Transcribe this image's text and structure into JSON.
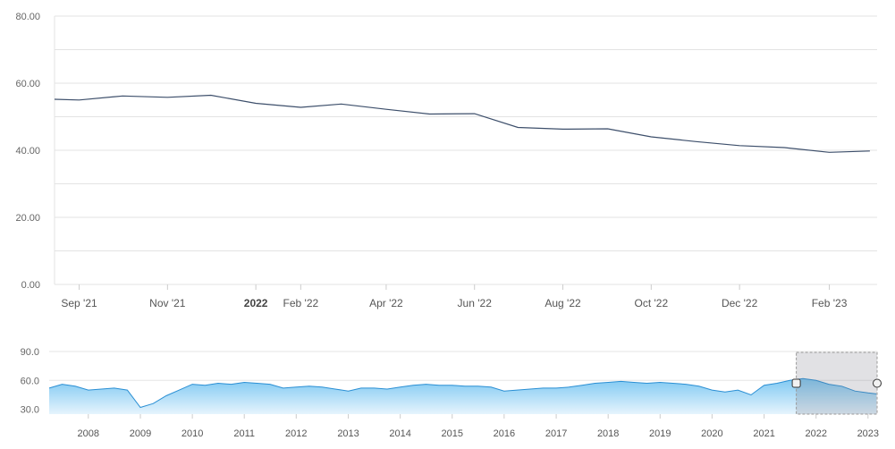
{
  "chart_data": [
    {
      "type": "line",
      "title": "",
      "xlabel": "",
      "ylabel": "",
      "ylim": [
        0,
        80
      ],
      "yticks": [
        "0.00",
        "20.00",
        "40.00",
        "60.00",
        "80.00"
      ],
      "xticks": [
        "Sep '21",
        "Nov '21",
        "2022",
        "Feb '22",
        "Apr '22",
        "Jun '22",
        "Aug '22",
        "Oct '22",
        "Dec '22",
        "Feb '23"
      ],
      "grid": true,
      "line_color": "#3d4f6b",
      "series": [
        {
          "x": [
            "2021-08-15",
            "2021-09-01",
            "2021-10-01",
            "2021-11-01",
            "2021-12-01",
            "2022-01-01",
            "2022-02-01",
            "2022-03-01",
            "2022-04-01",
            "2022-05-01",
            "2022-06-01",
            "2022-07-01",
            "2022-08-01",
            "2022-09-01",
            "2022-10-01",
            "2022-11-01",
            "2022-12-01",
            "2023-01-01",
            "2023-02-01",
            "2023-03-01"
          ],
          "y": [
            55.2,
            55.0,
            56.2,
            55.8,
            56.4,
            54.0,
            52.8,
            53.8,
            52.2,
            50.8,
            50.9,
            46.8,
            46.3,
            46.4,
            44.0,
            42.6,
            41.4,
            40.8,
            39.4,
            39.8
          ]
        }
      ]
    },
    {
      "type": "area",
      "title": "",
      "ylim": [
        25,
        90
      ],
      "yticks": [
        "30.0",
        "60.0",
        "90.0"
      ],
      "xticks": [
        "2008",
        "2009",
        "2010",
        "2011",
        "2012",
        "2013",
        "2014",
        "2015",
        "2016",
        "2017",
        "2018",
        "2019",
        "2020",
        "2021",
        "2022",
        "2023"
      ],
      "fill_color": "#7ec8f2",
      "line_color": "#2a8fd4",
      "selected_range": [
        "2021-08-15",
        "2023-03-01"
      ],
      "series": [
        {
          "x": [
            "2007-04",
            "2007-07",
            "2007-10",
            "2008-01",
            "2008-04",
            "2008-07",
            "2008-10",
            "2009-01",
            "2009-04",
            "2009-07",
            "2009-10",
            "2010-01",
            "2010-04",
            "2010-07",
            "2010-10",
            "2011-01",
            "2011-04",
            "2011-07",
            "2011-10",
            "2012-01",
            "2012-04",
            "2012-07",
            "2012-10",
            "2013-01",
            "2013-04",
            "2013-07",
            "2013-10",
            "2014-01",
            "2014-04",
            "2014-07",
            "2014-10",
            "2015-01",
            "2015-04",
            "2015-07",
            "2015-10",
            "2016-01",
            "2016-04",
            "2016-07",
            "2016-10",
            "2017-01",
            "2017-04",
            "2017-07",
            "2017-10",
            "2018-01",
            "2018-04",
            "2018-07",
            "2018-10",
            "2019-01",
            "2019-04",
            "2019-07",
            "2019-10",
            "2020-01",
            "2020-04",
            "2020-07",
            "2020-10",
            "2021-01",
            "2021-04",
            "2021-07",
            "2021-10",
            "2022-01",
            "2022-04",
            "2022-07",
            "2022-10",
            "2023-01",
            "2023-03"
          ],
          "y": [
            52,
            56,
            54,
            50,
            51,
            52,
            50,
            32,
            36,
            44,
            50,
            56,
            55,
            57,
            56,
            58,
            57,
            56,
            52,
            53,
            54,
            53,
            51,
            49,
            52,
            52,
            51,
            53,
            55,
            56,
            55,
            55,
            54,
            54,
            53,
            49,
            50,
            51,
            52,
            52,
            53,
            55,
            57,
            58,
            59,
            58,
            57,
            58,
            57,
            56,
            54,
            50,
            48,
            50,
            45,
            55,
            57,
            60,
            62,
            60,
            56,
            54,
            49,
            47,
            46
          ]
        }
      ]
    }
  ]
}
